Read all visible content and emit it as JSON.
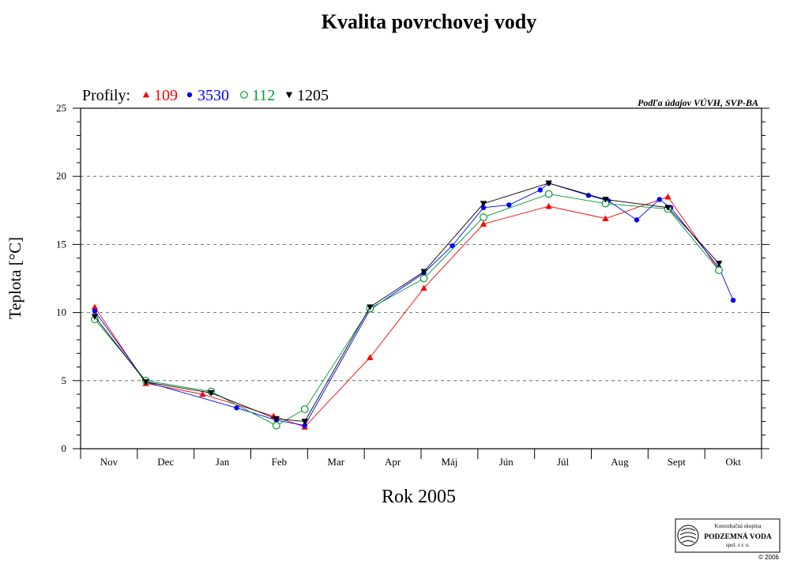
{
  "chart_data": {
    "type": "line",
    "title": "Kvalita povrchovej vody",
    "xlabel": "Rok 2005",
    "ylabel": "Teplota [°C]",
    "ylim": [
      0,
      25
    ],
    "yticks": [
      "0",
      "5",
      "10",
      "15",
      "20",
      "25"
    ],
    "xlim": [
      0,
      12
    ],
    "categories": [
      "Nov",
      "Dec",
      "Jan",
      "Feb",
      "Mar",
      "Apr",
      "Máj",
      "Jún",
      "Júl",
      "Aug",
      "Sept",
      "Okt"
    ],
    "grid": "horizontal dashed",
    "legend_title": "Profily:",
    "source_note": "Podľa údajov VÚVH, SVP-BA",
    "series": [
      {
        "name": "109",
        "color": "#ff0000",
        "marker": "triangle-up-filled",
        "x": [
          0.25,
          1.15,
          2.15,
          3.4,
          3.95,
          5.1,
          6.05,
          7.1,
          8.25,
          9.25,
          10.35,
          11.25
        ],
        "y": [
          10.4,
          4.8,
          4.0,
          2.4,
          1.6,
          6.7,
          11.8,
          16.5,
          17.8,
          16.9,
          18.5,
          13.1
        ]
      },
      {
        "name": "3530",
        "color": "#0000ff",
        "marker": "circle-filled",
        "x": [
          0.25,
          1.15,
          2.75,
          3.45,
          3.95,
          5.1,
          6.05,
          6.55,
          7.1,
          7.55,
          8.1,
          8.25,
          8.95,
          9.3,
          9.8,
          10.2,
          10.4,
          11.25,
          11.5
        ],
        "y": [
          10.1,
          4.9,
          3.0,
          2.1,
          1.7,
          10.2,
          12.9,
          14.9,
          17.7,
          17.9,
          19.0,
          19.5,
          18.6,
          18.2,
          16.8,
          18.3,
          17.7,
          13.3,
          10.9
        ]
      },
      {
        "name": "112",
        "color": "#009933",
        "marker": "circle-open",
        "x": [
          0.25,
          1.15,
          2.3,
          3.45,
          3.95,
          5.1,
          6.05,
          7.1,
          8.25,
          9.25,
          10.35,
          11.25
        ],
        "y": [
          9.5,
          5.0,
          4.2,
          1.7,
          2.9,
          10.3,
          12.5,
          17.0,
          18.7,
          18.0,
          17.6,
          13.1
        ]
      },
      {
        "name": "1205",
        "color": "#000000",
        "marker": "triangle-down-filled",
        "x": [
          0.25,
          1.15,
          2.3,
          3.45,
          3.95,
          5.1,
          6.05,
          7.1,
          8.25,
          9.25,
          10.35,
          11.25
        ],
        "y": [
          9.7,
          4.9,
          4.1,
          2.2,
          2.0,
          10.4,
          13.0,
          18.0,
          19.5,
          18.3,
          17.7,
          13.6
        ]
      }
    ]
  },
  "logo": {
    "line1": "Konzultačná skupina",
    "line2": "PODZEMNÁ VODA",
    "line3": "spol. s r. o.",
    "copyright": "© 2006"
  }
}
